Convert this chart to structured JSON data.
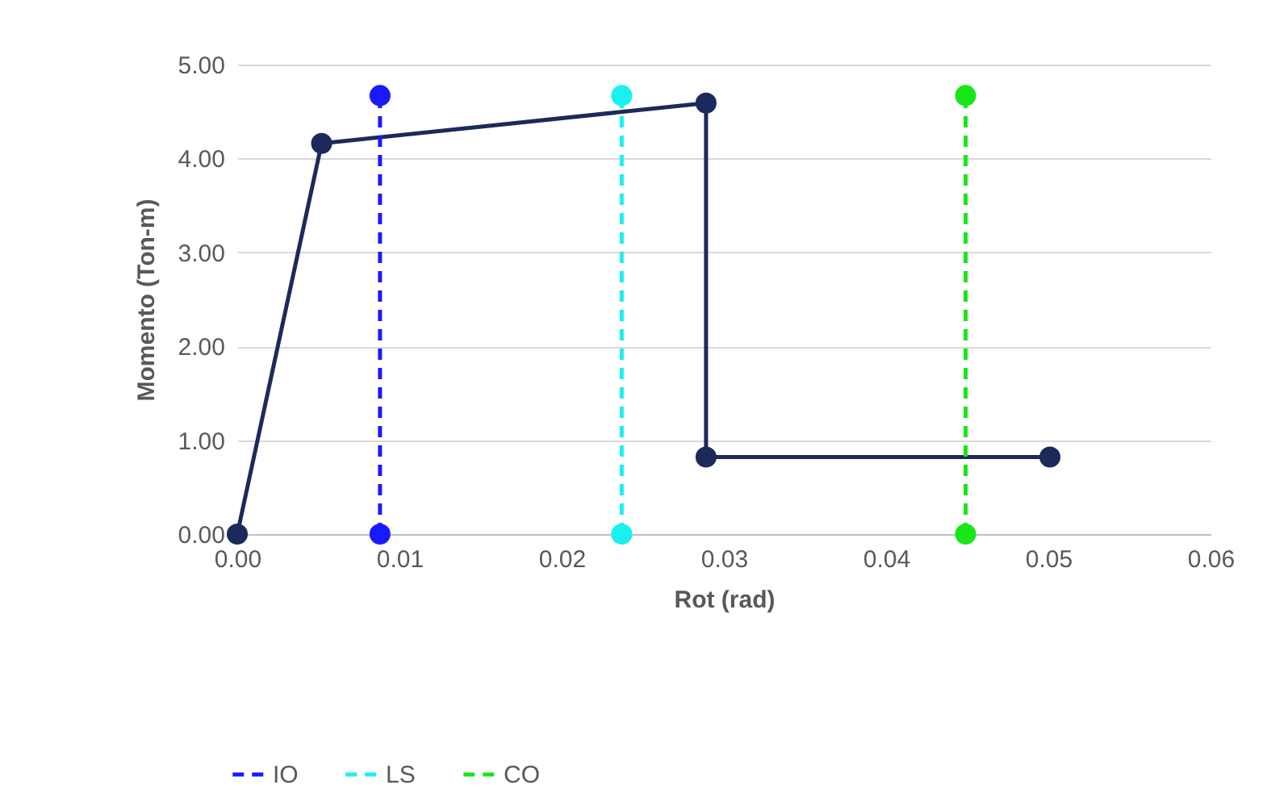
{
  "chart_data": {
    "type": "line",
    "xlabel": "Rot (rad)",
    "ylabel": "Momento (Ton-m)",
    "xlim": [
      0,
      0.06
    ],
    "ylim": [
      0,
      5
    ],
    "xticks": [
      {
        "value": 0,
        "label": "0.00"
      },
      {
        "value": 0.01,
        "label": "0.01"
      },
      {
        "value": 0.02,
        "label": "0.02"
      },
      {
        "value": 0.03,
        "label": "0.03"
      },
      {
        "value": 0.04,
        "label": "0.04"
      },
      {
        "value": 0.05,
        "label": "0.05"
      },
      {
        "value": 0.06,
        "label": "0.06"
      }
    ],
    "yticks": [
      {
        "value": 0,
        "label": "0.00"
      },
      {
        "value": 1,
        "label": "1.00"
      },
      {
        "value": 2,
        "label": "2.00"
      },
      {
        "value": 3,
        "label": "3.00"
      },
      {
        "value": 4,
        "label": "4.00"
      },
      {
        "value": 5,
        "label": "5.00"
      }
    ],
    "grid": "y",
    "legend": "bottom",
    "marker": "circle",
    "series": [
      {
        "color": "#1b2a5a",
        "line_style": "solid",
        "x": [
          0,
          0.0052,
          0.0289,
          0.0289,
          0.0501
        ],
        "values": [
          0,
          4.16,
          4.59,
          0.82,
          0.82
        ]
      },
      {
        "name": "IO",
        "color": "#1a1aff",
        "line_style": "dashed",
        "x": [
          0.0088,
          0.0088
        ],
        "values": [
          0,
          4.67
        ]
      },
      {
        "name": "LS",
        "color": "#19f0f0",
        "line_style": "dashed",
        "x": [
          0.0237,
          0.0237
        ],
        "values": [
          0,
          4.67
        ]
      },
      {
        "name": "CO",
        "color": "#19e619",
        "line_style": "dashed",
        "x": [
          0.0449,
          0.0449
        ],
        "values": [
          0,
          4.67
        ]
      }
    ]
  }
}
